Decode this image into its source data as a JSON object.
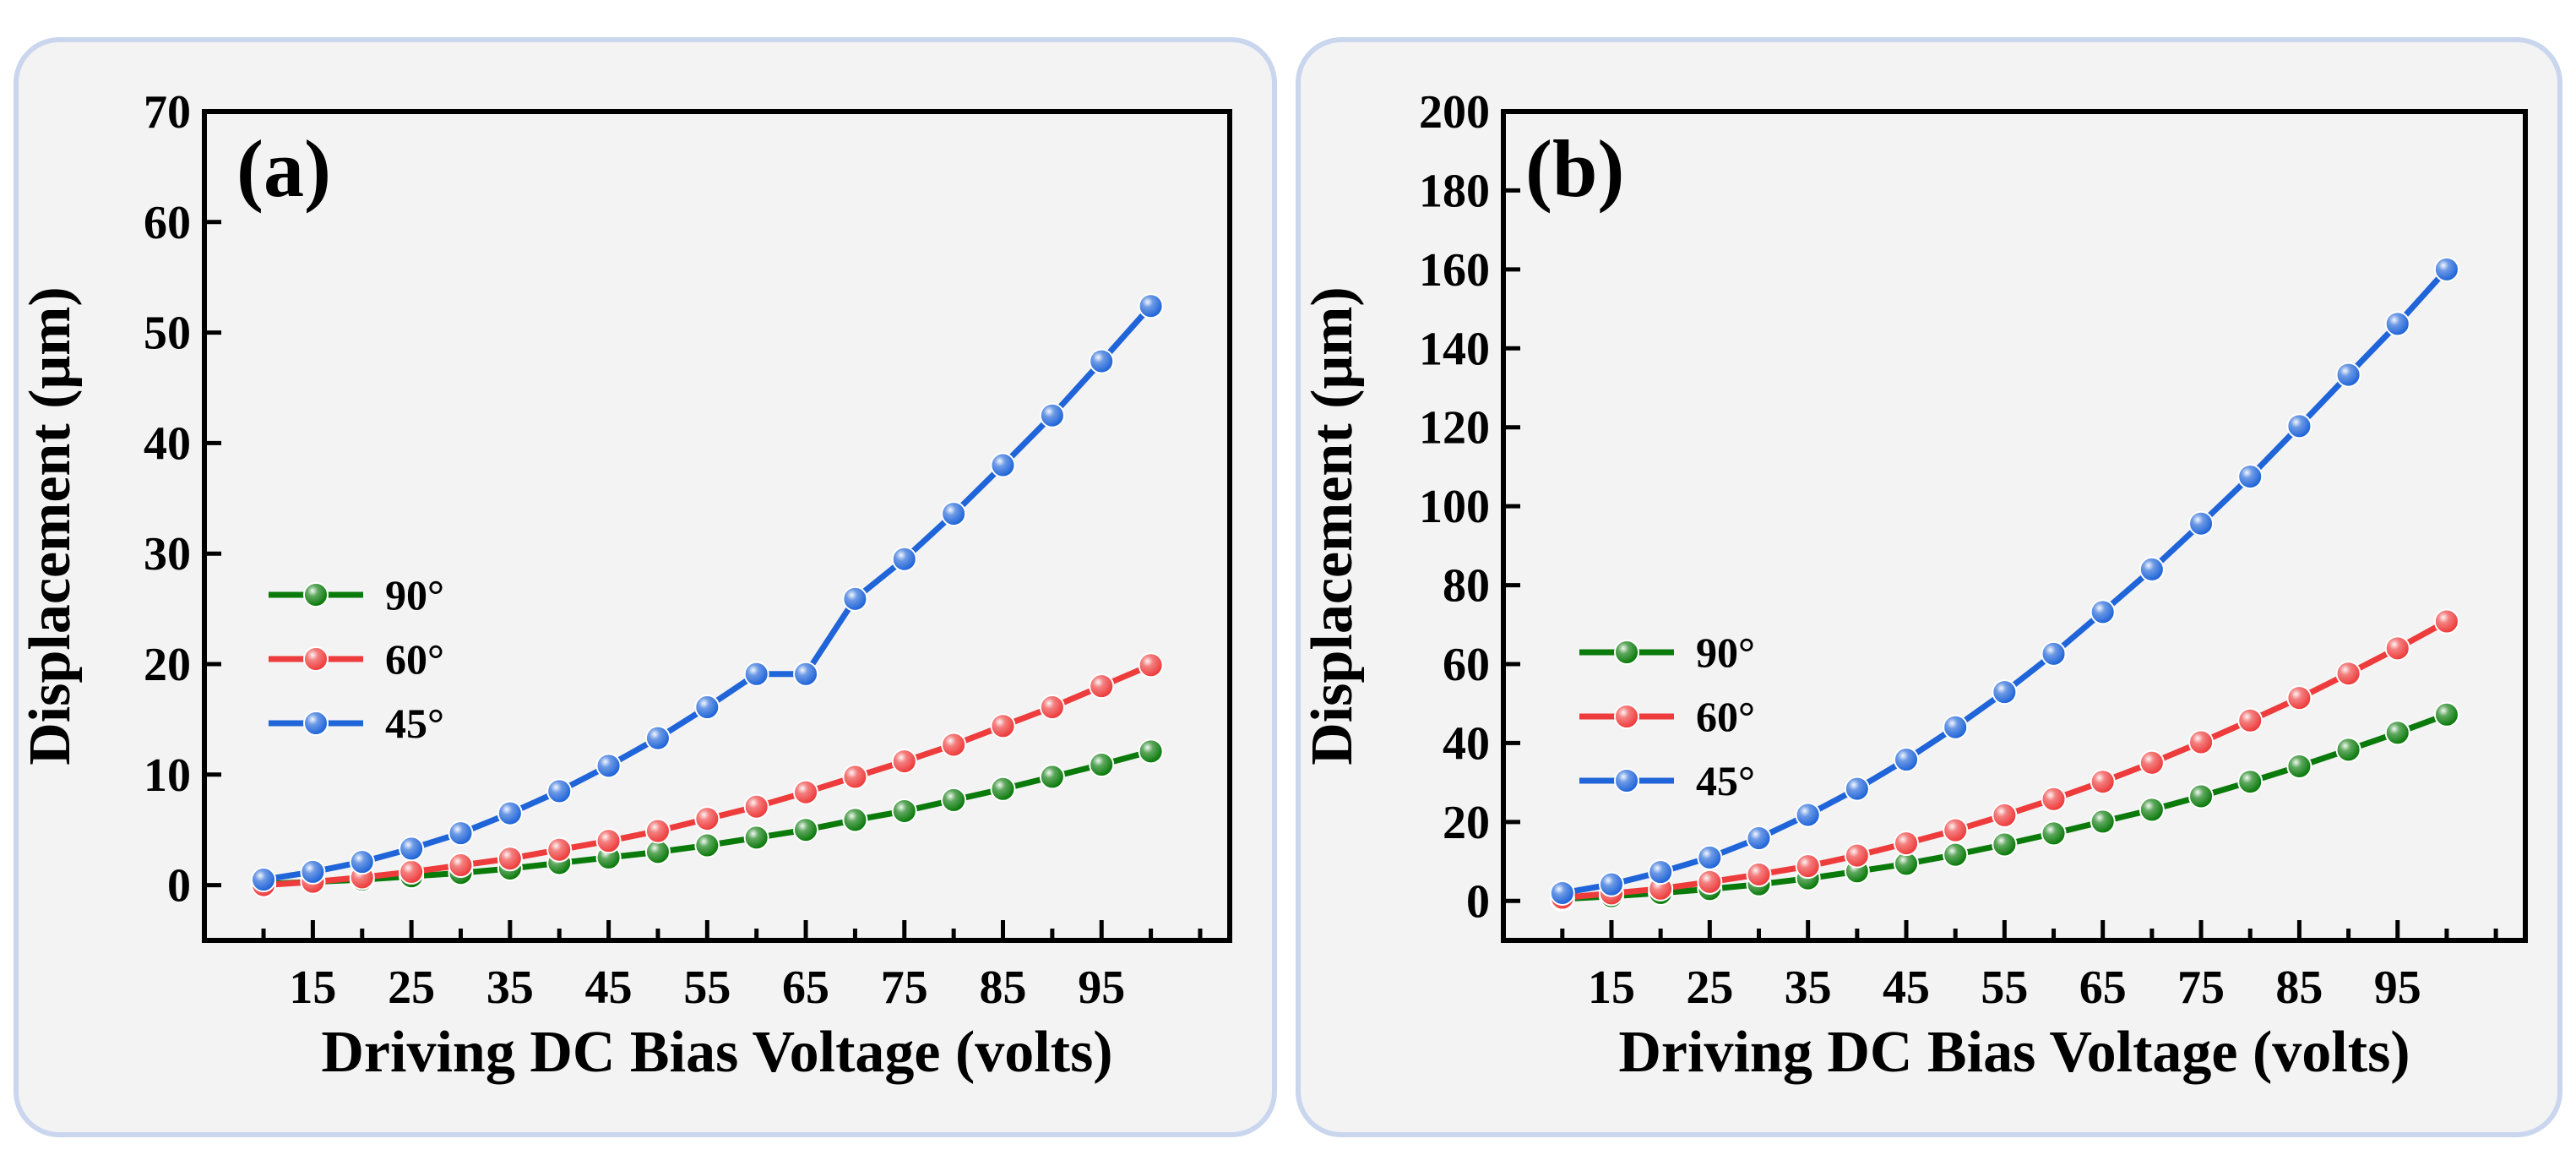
{
  "chart_data": [
    {
      "type": "line",
      "panel_label": "(a)",
      "xlabel": "Driving DC Bias Voltage (volts)",
      "ylabel": "Displacement (μm)",
      "xlim": [
        4,
        108
      ],
      "ylim": [
        -5,
        70
      ],
      "xticks": [
        15,
        25,
        35,
        45,
        55,
        65,
        75,
        85,
        95
      ],
      "xticks_minor": [
        10,
        20,
        30,
        40,
        50,
        60,
        70,
        80,
        90,
        100,
        105
      ],
      "yticks": [
        0,
        10,
        20,
        30,
        40,
        50,
        60,
        70
      ],
      "x": [
        10,
        15,
        20,
        25,
        30,
        35,
        40,
        45,
        50,
        55,
        60,
        65,
        70,
        75,
        80,
        85,
        90,
        95,
        100
      ],
      "legend": {
        "position": "center-left",
        "series_order": [
          "90°",
          "60°",
          "45°"
        ]
      },
      "series": [
        {
          "name": "90°",
          "color": "#0a7a0a",
          "values": [
            0.1,
            0.3,
            0.5,
            0.8,
            1.1,
            1.5,
            2.0,
            2.5,
            3.0,
            3.6,
            4.3,
            5.0,
            5.9,
            6.7,
            7.7,
            8.7,
            9.8,
            10.9,
            12.1
          ]
        },
        {
          "name": "60°",
          "color": "#ee3b3b",
          "values": [
            0.0,
            0.3,
            0.7,
            1.2,
            1.8,
            2.4,
            3.2,
            4.0,
            4.9,
            6.0,
            7.1,
            8.4,
            9.8,
            11.2,
            12.7,
            14.4,
            16.1,
            18.0,
            19.9
          ]
        },
        {
          "name": "45°",
          "color": "#1f64d8",
          "values": [
            0.5,
            1.2,
            2.1,
            3.3,
            4.7,
            6.5,
            8.5,
            10.8,
            13.3,
            16.1,
            19.1,
            19.1,
            25.9,
            29.5,
            33.6,
            38.0,
            42.5,
            47.4,
            52.4
          ]
        }
      ]
    },
    {
      "type": "line",
      "panel_label": "(b)",
      "xlabel": "Driving DC Bias Voltage (volts)",
      "ylabel": "Displacement (μm)",
      "xlim": [
        4,
        108
      ],
      "ylim": [
        -10,
        200
      ],
      "xticks": [
        15,
        25,
        35,
        45,
        55,
        65,
        75,
        85,
        95
      ],
      "xticks_minor": [
        10,
        20,
        30,
        40,
        50,
        60,
        70,
        80,
        90,
        100,
        105
      ],
      "yticks": [
        0,
        20,
        40,
        60,
        80,
        100,
        120,
        140,
        160,
        180,
        200
      ],
      "x": [
        10,
        15,
        20,
        25,
        30,
        35,
        40,
        45,
        50,
        55,
        60,
        65,
        70,
        75,
        80,
        85,
        90,
        95,
        100
      ],
      "legend": {
        "position": "center-left",
        "series_order": [
          "90°",
          "60°",
          "45°"
        ]
      },
      "series": [
        {
          "name": "90°",
          "color": "#0a7a0a",
          "values": [
            0.5,
            1.2,
            2.0,
            3.0,
            4.2,
            5.7,
            7.5,
            9.4,
            11.7,
            14.3,
            17.1,
            20.1,
            23.1,
            26.5,
            30.2,
            34.1,
            38.3,
            42.6,
            47.2
          ]
        },
        {
          "name": "60°",
          "color": "#ee3b3b",
          "values": [
            0.8,
            1.9,
            3.1,
            4.8,
            6.7,
            8.8,
            11.5,
            14.6,
            17.9,
            21.7,
            25.8,
            30.2,
            35.0,
            40.2,
            45.7,
            51.4,
            57.6,
            64.0,
            70.8
          ]
        },
        {
          "name": "45°",
          "color": "#1f64d8",
          "values": [
            2.0,
            4.2,
            7.3,
            11.0,
            15.9,
            21.8,
            28.4,
            35.8,
            44.0,
            52.9,
            62.6,
            73.2,
            84.0,
            95.6,
            107.5,
            120.3,
            133.3,
            146.2,
            160.0
          ]
        }
      ]
    }
  ]
}
